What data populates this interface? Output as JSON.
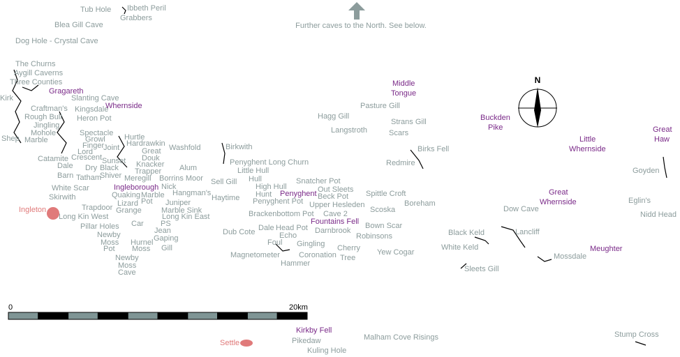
{
  "north_note": "Further caves to the North. See below.",
  "scale": {
    "start": "0",
    "end": "20km"
  },
  "caves": [
    "Tub Hole",
    "Ibbeth Peril",
    "Grabbers",
    "Blea Gill Cave",
    "Dog Hole - Crystal Cave",
    "The Churns",
    "Aygill Caverns",
    "Three Counties",
    "Slanting Cave",
    "Kirk",
    "Craftman's",
    "Kingsdale",
    "Rough Bull",
    "Heron Pot",
    "Jingling",
    "Mohole",
    "Spectacle",
    "Hurtle",
    "Shep",
    "Marble",
    "Growl",
    "Hardrawkin",
    "Finger",
    "Joint",
    "Washfold",
    "Birkwith",
    "Great",
    "Lord",
    "Crescent",
    "Douk",
    "Catamite",
    "Sunset",
    "Penyghent Long Churn",
    "Knacker",
    "Dale",
    "Dry",
    "Black",
    "Trapper",
    "Alum",
    "Little Hull",
    "Shiver",
    "Barn",
    "Tatham",
    "Meregill",
    "Borrins Moor",
    "Sell Gill",
    "Hull",
    "Snatcher Pot",
    "Nick",
    "High Hull",
    "White Scar",
    "Out Sleets",
    "Hangman's",
    "Quaking",
    "Marble",
    "Hunt",
    "Spittle Croft",
    "Skirwith",
    "Haytime",
    "Beck Pot",
    "Pot",
    "Lizard",
    "Penyghent Pot",
    "Juniper",
    "Boreham",
    "Upper Hesleden",
    "Trapdoor",
    "Grange",
    "Marble Sink",
    "Scoska",
    "Dow Cave",
    "Long Kin West",
    "Brackenbottom Pot",
    "Cave 2",
    "Long Kin East",
    "Car",
    "PS",
    "Pillar Holes",
    "Bown Scar",
    "Dale",
    "Head Pot",
    "Jean",
    "Darnbrook",
    "Lancliff",
    "Black Keld",
    "Dub Cote",
    "Newby",
    "Echo",
    "Robinsons",
    "Gaping",
    "Moss",
    "Foul",
    "Hurnel",
    "Gingling",
    "Pot",
    "Moss",
    "Gill",
    "Cherry",
    "White Keld",
    "Yew Cogar",
    "Magnetometer",
    "Coronation",
    "Mossdale",
    "Newby",
    "Tree",
    "Hammer",
    "Moss",
    "Sleets Gill",
    "Cave",
    "Pikedaw",
    "Malham Cove Risings",
    "Kuling Hole",
    "Stump Cross",
    "Strans Gill",
    "Pasture Gill",
    "Hagg Gill",
    "Langstroth",
    "Scars",
    "Birks Fell",
    "Redmire",
    "Goyden",
    "Eglin's",
    "Nidd Head"
  ],
  "peaks": [
    "Gragareth",
    "Whernside",
    "Middle",
    "Tongue",
    "Buckden",
    "Pike",
    "Little",
    "Whernside",
    "Great",
    "Haw",
    "Ingleborough",
    "Penyghent",
    "Fountains Fell",
    "Great",
    "Whernside",
    "Meughter",
    "Kirkby Fell"
  ],
  "towns": [
    "Ingleton",
    "Settle"
  ]
}
